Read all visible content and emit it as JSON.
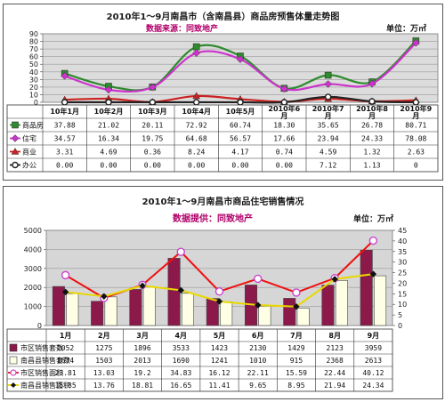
{
  "chart_data": [
    {
      "type": "line",
      "title": "2010年1～9月南昌市（含南昌县）商品房预售体量走势图",
      "subtitle": "数据来源：同致地产",
      "unit": "单位：万㎡",
      "categories": [
        "10年1月",
        "10年2月",
        "10年3月",
        "10年4月",
        "10年5月",
        "2010年6月",
        "2010年7月",
        "2010年8月",
        "2010年9月"
      ],
      "category_lines": [
        [
          "10年1月"
        ],
        [
          "10年2月"
        ],
        [
          "10年3月"
        ],
        [
          "10年4月"
        ],
        [
          "10年5月"
        ],
        [
          "2010年6",
          "月"
        ],
        [
          "2010年7",
          "月"
        ],
        [
          "2010年8",
          "月"
        ],
        [
          "2010年9",
          "月"
        ]
      ],
      "ylim": [
        0,
        90
      ],
      "yticks": [
        0,
        10,
        20,
        30,
        40,
        50,
        60,
        70,
        80,
        90
      ],
      "grid": true,
      "series": [
        {
          "name": "商品房",
          "color": "#2e8b2e",
          "marker": "square",
          "values": [
            37.88,
            21.02,
            20.11,
            72.92,
            60.74,
            18.3,
            35.65,
            26.78,
            80.71
          ],
          "labels": [
            "37.88",
            "21.02",
            "20.11",
            "72.92",
            "60.74",
            "18.30",
            "35.65",
            "26.78",
            "80.71"
          ]
        },
        {
          "name": "住宅",
          "color": "#cc33cc",
          "marker": "diamond",
          "values": [
            34.57,
            16.34,
            19.75,
            64.68,
            56.57,
            17.66,
            23.94,
            24.33,
            78.08
          ],
          "labels": [
            "34.57",
            "16.34",
            "19.75",
            "64.68",
            "56.57",
            "17.66",
            "23.94",
            "24.33",
            "78.08"
          ]
        },
        {
          "name": "商业",
          "color": "#cc2222",
          "marker": "triangle",
          "values": [
            3.31,
            4.69,
            0.36,
            8.24,
            4.17,
            0.74,
            4.59,
            1.32,
            2.63
          ],
          "labels": [
            "3.31",
            "4.69",
            "0.36",
            "8.24",
            "4.17",
            "0.74",
            "4.59",
            "1.32",
            "2.63"
          ]
        },
        {
          "name": "办公",
          "color": "#222222",
          "marker": "circle",
          "values": [
            0,
            0,
            0,
            0,
            0,
            0,
            7.12,
            1.13,
            0
          ],
          "labels": [
            "0.00",
            "0.00",
            "0.00",
            "0.00",
            "0.00",
            "0.00",
            "7.12",
            "1.13",
            "0"
          ]
        }
      ]
    },
    {
      "type": "bar",
      "title": "2010年1～9月南昌市商品住宅销售情况",
      "subtitle": "数据提供：同致地产",
      "unit": "单位：万㎡",
      "categories": [
        "1月",
        "2月",
        "3月",
        "4月",
        "5月",
        "6月",
        "7月",
        "8月",
        "9月"
      ],
      "ylim": [
        0,
        5000
      ],
      "yticks": [
        0,
        1000,
        2000,
        3000,
        4000,
        5000
      ],
      "y2lim": [
        0,
        45
      ],
      "y2ticks": [
        0,
        5,
        10,
        15,
        20,
        25,
        30,
        35,
        40,
        45
      ],
      "grid": true,
      "series": [
        {
          "name": "市区销售套数",
          "kind": "bar",
          "axis": "left",
          "color": "#8b1a4a",
          "values": [
            2052,
            1275,
            1896,
            3533,
            1423,
            2130,
            1429,
            2123,
            3959
          ],
          "labels": [
            "2052",
            "1275",
            "1896",
            "3533",
            "1423",
            "2130",
            "1429",
            "2123",
            "3959"
          ]
        },
        {
          "name": "南昌县销售套数",
          "kind": "bar",
          "axis": "left",
          "color": "#ffffe6",
          "values": [
            1674,
            1503,
            2013,
            1690,
            1241,
            1010,
            915,
            2368,
            2613
          ],
          "labels": [
            "1674",
            "1503",
            "2013",
            "1690",
            "1241",
            "1010",
            "915",
            "2368",
            "2613"
          ]
        },
        {
          "name": "市区销售面积",
          "kind": "line",
          "axis": "right",
          "color": "#ee1111",
          "marker": "circle",
          "values": [
            23.81,
            13.03,
            19.2,
            34.83,
            16.12,
            22.11,
            15.59,
            22.44,
            40.12
          ],
          "labels": [
            "23.81",
            "13.03",
            "19.2",
            "34.83",
            "16.12",
            "22.11",
            "15.59",
            "22.44",
            "40.12"
          ]
        },
        {
          "name": "南昌县销售面积",
          "kind": "line",
          "axis": "right",
          "color": "#e8d800",
          "marker": "diamond",
          "values": [
            15.85,
            13.76,
            18.81,
            16.65,
            11.41,
            9.65,
            8.95,
            21.94,
            24.34
          ],
          "labels": [
            "15.85",
            "13.76",
            "18.81",
            "16.65",
            "11.41",
            "9.65",
            "8.95",
            "21.94",
            "24.34"
          ]
        }
      ]
    }
  ]
}
